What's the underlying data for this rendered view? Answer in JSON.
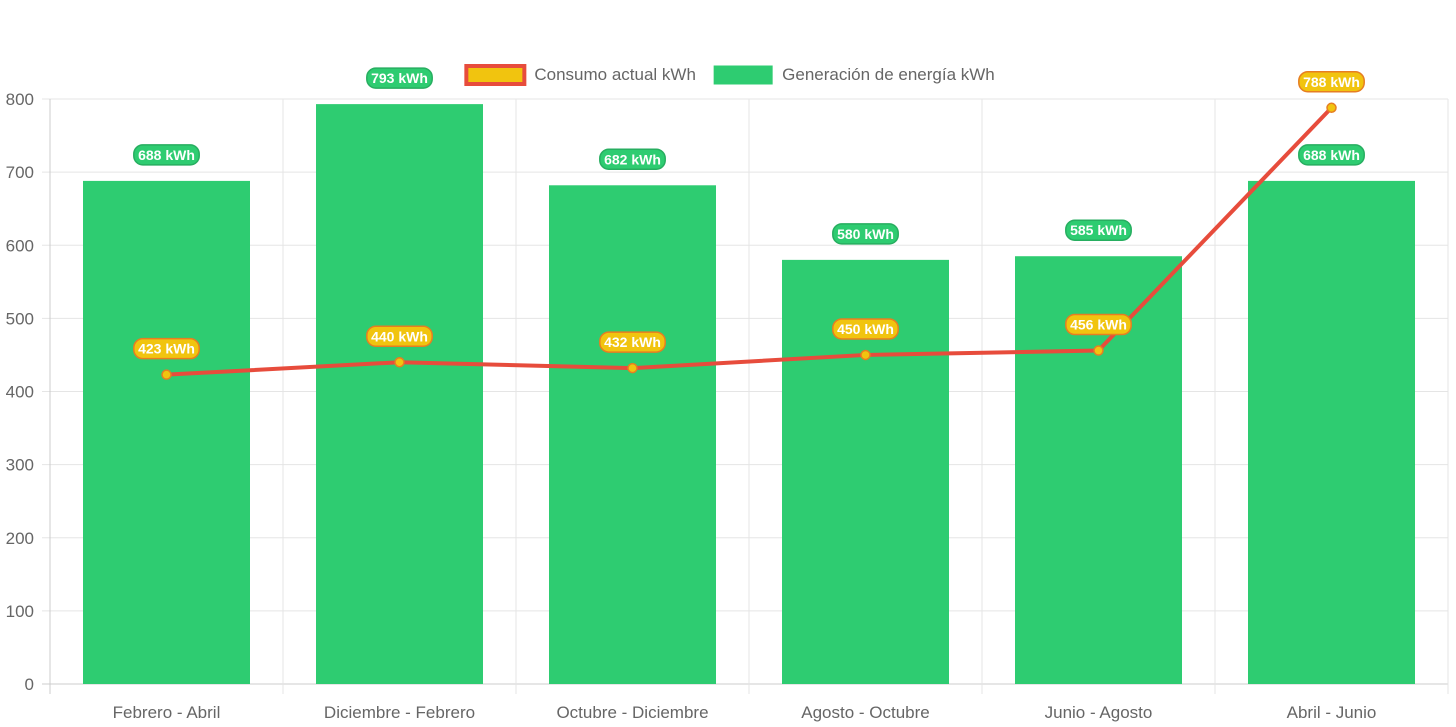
{
  "colors": {
    "bar_fill": "#2ecc71",
    "bar_label_bg": "#2ecc71",
    "bar_label_border": "#27ae60",
    "line_stroke": "#e74c3c",
    "point_fill": "#f1c40f",
    "point_border": "#e67e22",
    "line_label_bg": "#f1c40f",
    "line_label_border": "#e67e22",
    "grid": "#e5e5e5",
    "axis": "#cccccc",
    "tick_text": "#666666"
  },
  "legend": {
    "items": [
      {
        "label": "Consumo actual kWh",
        "fill": "#f1c40f",
        "border": "#e74c3c"
      },
      {
        "label": "Generación de energía kWh",
        "fill": "#2ecc71",
        "border": "#2ecc71"
      }
    ]
  },
  "chart_data": {
    "type": "bar",
    "categories": [
      "Febrero - Abril",
      "Diciembre - Febrero",
      "Octubre - Diciembre",
      "Agosto - Octubre",
      "Junio - Agosto",
      "Abril - Junio"
    ],
    "series": [
      {
        "name": "Consumo actual kWh",
        "type": "line",
        "values": [
          423,
          440,
          432,
          450,
          456,
          788
        ],
        "labels": [
          "423 kWh",
          "440 kWh",
          "432 kWh",
          "450 kWh",
          "456 kWh",
          "788 kWh"
        ]
      },
      {
        "name": "Generación de energía kWh",
        "type": "bar",
        "values": [
          688,
          793,
          682,
          580,
          585,
          688
        ],
        "labels": [
          "688 kWh",
          "793 kWh",
          "682 kWh",
          "580 kWh",
          "585 kWh",
          "688 kWh"
        ]
      }
    ],
    "ylim": [
      0,
      800
    ],
    "yticks": [
      0,
      100,
      200,
      300,
      400,
      500,
      600,
      700,
      800
    ],
    "legend_position": "top-center",
    "grid": true
  }
}
